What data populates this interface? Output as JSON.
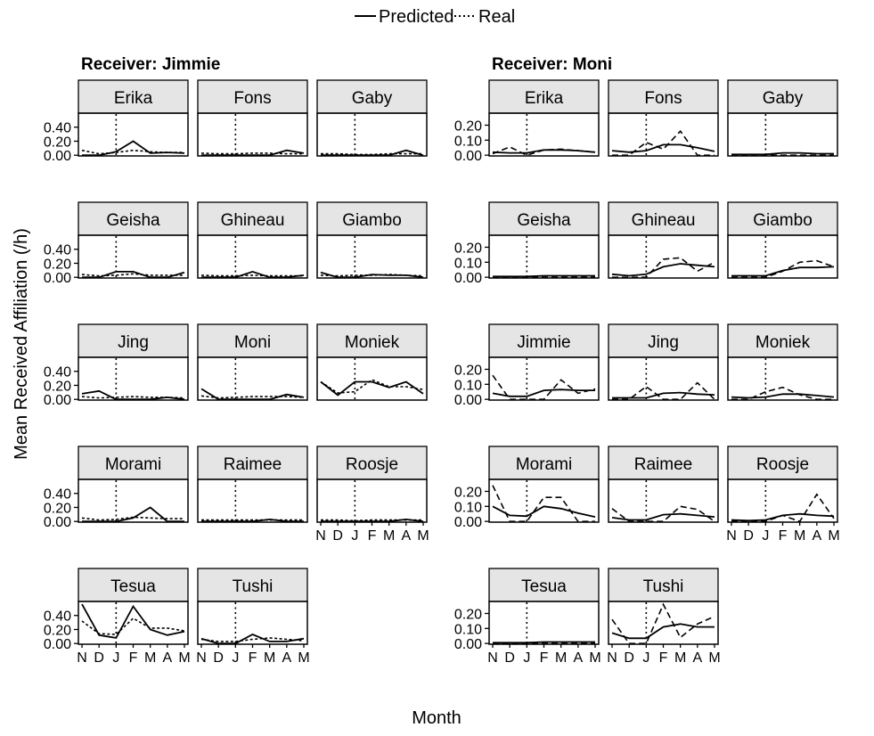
{
  "legend": {
    "predicted_label": "Predicted",
    "real_label": "Real",
    "placement": "top-center"
  },
  "axis": {
    "y_label": "Mean Received Affiliation (/h)",
    "x_label": "Month"
  },
  "colors": {
    "strip_background": "#e5e5e5",
    "line": "#000000",
    "reference_line": "#000000"
  },
  "chart_data": [
    {
      "type": "line",
      "title": "Receiver: Jimmie",
      "x": [
        "N",
        "D",
        "J",
        "F",
        "M",
        "A",
        "M"
      ],
      "ylim": [
        -0.01,
        0.6
      ],
      "yticks": [
        0.0,
        0.2,
        0.4
      ],
      "ytick_labels": [
        "0.00",
        "0.20",
        "0.40"
      ],
      "reference_x": "J",
      "reference_line_style": "dotted",
      "panels": [
        {
          "name": "Erika",
          "predicted": [
            0.0,
            0.0,
            0.05,
            0.2,
            0.03,
            0.04,
            0.03
          ],
          "real": [
            0.07,
            0.02,
            0.04,
            0.07,
            0.05,
            0.04,
            0.04
          ]
        },
        {
          "name": "Fons",
          "predicted": [
            0.0,
            0.0,
            0.0,
            0.0,
            0.0,
            0.07,
            0.03
          ],
          "real": [
            0.03,
            0.02,
            0.02,
            0.03,
            0.03,
            0.02,
            0.02
          ]
        },
        {
          "name": "Gaby",
          "predicted": [
            0.0,
            0.0,
            0.0,
            0.0,
            0.0,
            0.07,
            0.0
          ],
          "real": [
            0.02,
            0.02,
            0.01,
            0.01,
            0.02,
            0.02,
            0.02
          ]
        },
        {
          "name": "Geisha",
          "predicted": [
            0.0,
            0.0,
            0.08,
            0.08,
            0.0,
            0.0,
            0.07
          ],
          "real": [
            0.04,
            0.02,
            0.03,
            0.05,
            0.03,
            0.03,
            0.03
          ]
        },
        {
          "name": "Ghineau",
          "predicted": [
            0.0,
            0.0,
            0.0,
            0.08,
            0.0,
            0.0,
            0.03
          ],
          "real": [
            0.03,
            0.02,
            0.02,
            0.03,
            0.02,
            0.02,
            0.02
          ]
        },
        {
          "name": "Giambo",
          "predicted": [
            0.07,
            0.0,
            0.0,
            0.04,
            0.03,
            0.03,
            0.0
          ],
          "real": [
            0.03,
            0.02,
            0.03,
            0.03,
            0.04,
            0.03,
            0.02
          ]
        },
        {
          "name": "Jing",
          "predicted": [
            0.08,
            0.12,
            0.0,
            0.0,
            0.0,
            0.03,
            0.0
          ],
          "real": [
            0.04,
            0.02,
            0.03,
            0.04,
            0.03,
            0.03,
            0.02
          ]
        },
        {
          "name": "Moni",
          "predicted": [
            0.15,
            0.0,
            0.0,
            0.0,
            0.0,
            0.07,
            0.03
          ],
          "real": [
            0.05,
            0.02,
            0.03,
            0.04,
            0.04,
            0.04,
            0.03
          ]
        },
        {
          "name": "Moniek",
          "predicted": [
            0.25,
            0.06,
            0.25,
            0.25,
            0.17,
            0.25,
            0.08
          ],
          "real": [
            0.25,
            0.09,
            0.11,
            0.28,
            0.18,
            0.18,
            0.14
          ]
        },
        {
          "name": "Morami",
          "predicted": [
            0.0,
            0.0,
            0.0,
            0.05,
            0.2,
            0.0,
            0.0
          ],
          "real": [
            0.05,
            0.02,
            0.03,
            0.06,
            0.05,
            0.04,
            0.04
          ]
        },
        {
          "name": "Raimee",
          "predicted": [
            0.0,
            0.0,
            0.0,
            0.0,
            0.03,
            0.0,
            0.0
          ],
          "real": [
            0.02,
            0.02,
            0.02,
            0.02,
            0.02,
            0.02,
            0.02
          ]
        },
        {
          "name": "Roosje",
          "predicted": [
            0.0,
            0.0,
            0.0,
            0.0,
            0.0,
            0.03,
            0.0
          ],
          "real": [
            0.02,
            0.02,
            0.01,
            0.02,
            0.02,
            0.02,
            0.02
          ]
        },
        {
          "name": "Tesua",
          "predicted": [
            0.56,
            0.12,
            0.08,
            0.53,
            0.2,
            0.12,
            0.17
          ],
          "real": [
            0.32,
            0.14,
            0.13,
            0.36,
            0.22,
            0.22,
            0.18
          ]
        },
        {
          "name": "Tushi",
          "predicted": [
            0.07,
            0.0,
            0.0,
            0.13,
            0.03,
            0.03,
            0.07
          ],
          "real": [
            0.06,
            0.03,
            0.03,
            0.06,
            0.08,
            0.06,
            0.04
          ]
        }
      ]
    },
    {
      "type": "line",
      "title": "Receiver: Moni",
      "x": [
        "N",
        "D",
        "J",
        "F",
        "M",
        "A",
        "M"
      ],
      "ylim": [
        -0.005,
        0.28
      ],
      "yticks": [
        0.0,
        0.1,
        0.2
      ],
      "ytick_labels": [
        "0.00",
        "0.10",
        "0.20"
      ],
      "reference_x": "J",
      "reference_line_style": "dotted",
      "panels": [
        {
          "name": "Erika",
          "predicted": [
            0.02,
            0.015,
            0.015,
            0.035,
            0.035,
            0.03,
            0.02
          ],
          "real": [
            0.01,
            0.055,
            0.0,
            0.035,
            0.04,
            0.03,
            0.02
          ]
        },
        {
          "name": "Fons",
          "predicted": [
            0.03,
            0.02,
            0.03,
            0.07,
            0.07,
            0.05,
            0.025
          ],
          "real": [
            0.0,
            0.0,
            0.085,
            0.04,
            0.16,
            0.0,
            0.0
          ]
        },
        {
          "name": "Gaby",
          "predicted": [
            0.005,
            0.005,
            0.005,
            0.015,
            0.015,
            0.01,
            0.01
          ],
          "real": [
            0.0,
            0.0,
            0.0,
            0.0,
            0.0,
            0.0,
            0.0
          ]
        },
        {
          "name": "Geisha",
          "predicted": [
            0.005,
            0.005,
            0.005,
            0.01,
            0.01,
            0.01,
            0.01
          ],
          "real": [
            0.0,
            0.0,
            0.0,
            0.0,
            0.0,
            0.0,
            0.0
          ]
        },
        {
          "name": "Ghineau",
          "predicted": [
            0.02,
            0.01,
            0.02,
            0.07,
            0.09,
            0.08,
            0.07
          ],
          "real": [
            0.0,
            0.0,
            0.0,
            0.12,
            0.13,
            0.04,
            0.1
          ]
        },
        {
          "name": "Giambo",
          "predicted": [
            0.01,
            0.01,
            0.01,
            0.045,
            0.065,
            0.065,
            0.07
          ],
          "real": [
            0.0,
            0.0,
            0.0,
            0.04,
            0.1,
            0.11,
            0.07
          ]
        },
        {
          "name": "Jimmie",
          "predicted": [
            0.04,
            0.02,
            0.02,
            0.06,
            0.065,
            0.06,
            0.06
          ],
          "real": [
            0.16,
            0.0,
            0.0,
            0.0,
            0.13,
            0.04,
            0.07
          ]
        },
        {
          "name": "Jing",
          "predicted": [
            0.01,
            0.01,
            0.01,
            0.04,
            0.045,
            0.035,
            0.03
          ],
          "real": [
            0.0,
            0.0,
            0.085,
            0.0,
            0.0,
            0.11,
            0.0
          ]
        },
        {
          "name": "Moniek",
          "predicted": [
            0.015,
            0.01,
            0.015,
            0.035,
            0.035,
            0.025,
            0.015
          ],
          "real": [
            0.0,
            0.0,
            0.05,
            0.08,
            0.03,
            0.0,
            0.0
          ]
        },
        {
          "name": "Morami",
          "predicted": [
            0.1,
            0.04,
            0.035,
            0.1,
            0.085,
            0.055,
            0.03
          ],
          "real": [
            0.24,
            0.0,
            0.0,
            0.16,
            0.16,
            0.0,
            0.0
          ]
        },
        {
          "name": "Raimee",
          "predicted": [
            0.025,
            0.01,
            0.01,
            0.045,
            0.05,
            0.04,
            0.03
          ],
          "real": [
            0.085,
            0.0,
            0.0,
            0.0,
            0.1,
            0.08,
            0.0
          ]
        },
        {
          "name": "Roosje",
          "predicted": [
            0.01,
            0.005,
            0.01,
            0.04,
            0.05,
            0.04,
            0.035
          ],
          "real": [
            0.0,
            0.0,
            0.0,
            0.04,
            0.0,
            0.18,
            0.02
          ]
        },
        {
          "name": "Tesua",
          "predicted": [
            0.005,
            0.005,
            0.005,
            0.01,
            0.01,
            0.01,
            0.01
          ],
          "real": [
            0.0,
            0.0,
            0.0,
            0.0,
            0.0,
            0.0,
            0.0
          ]
        },
        {
          "name": "Tushi",
          "predicted": [
            0.07,
            0.035,
            0.035,
            0.11,
            0.13,
            0.11,
            0.11
          ],
          "real": [
            0.16,
            0.0,
            0.0,
            0.26,
            0.04,
            0.13,
            0.18
          ]
        }
      ]
    }
  ]
}
